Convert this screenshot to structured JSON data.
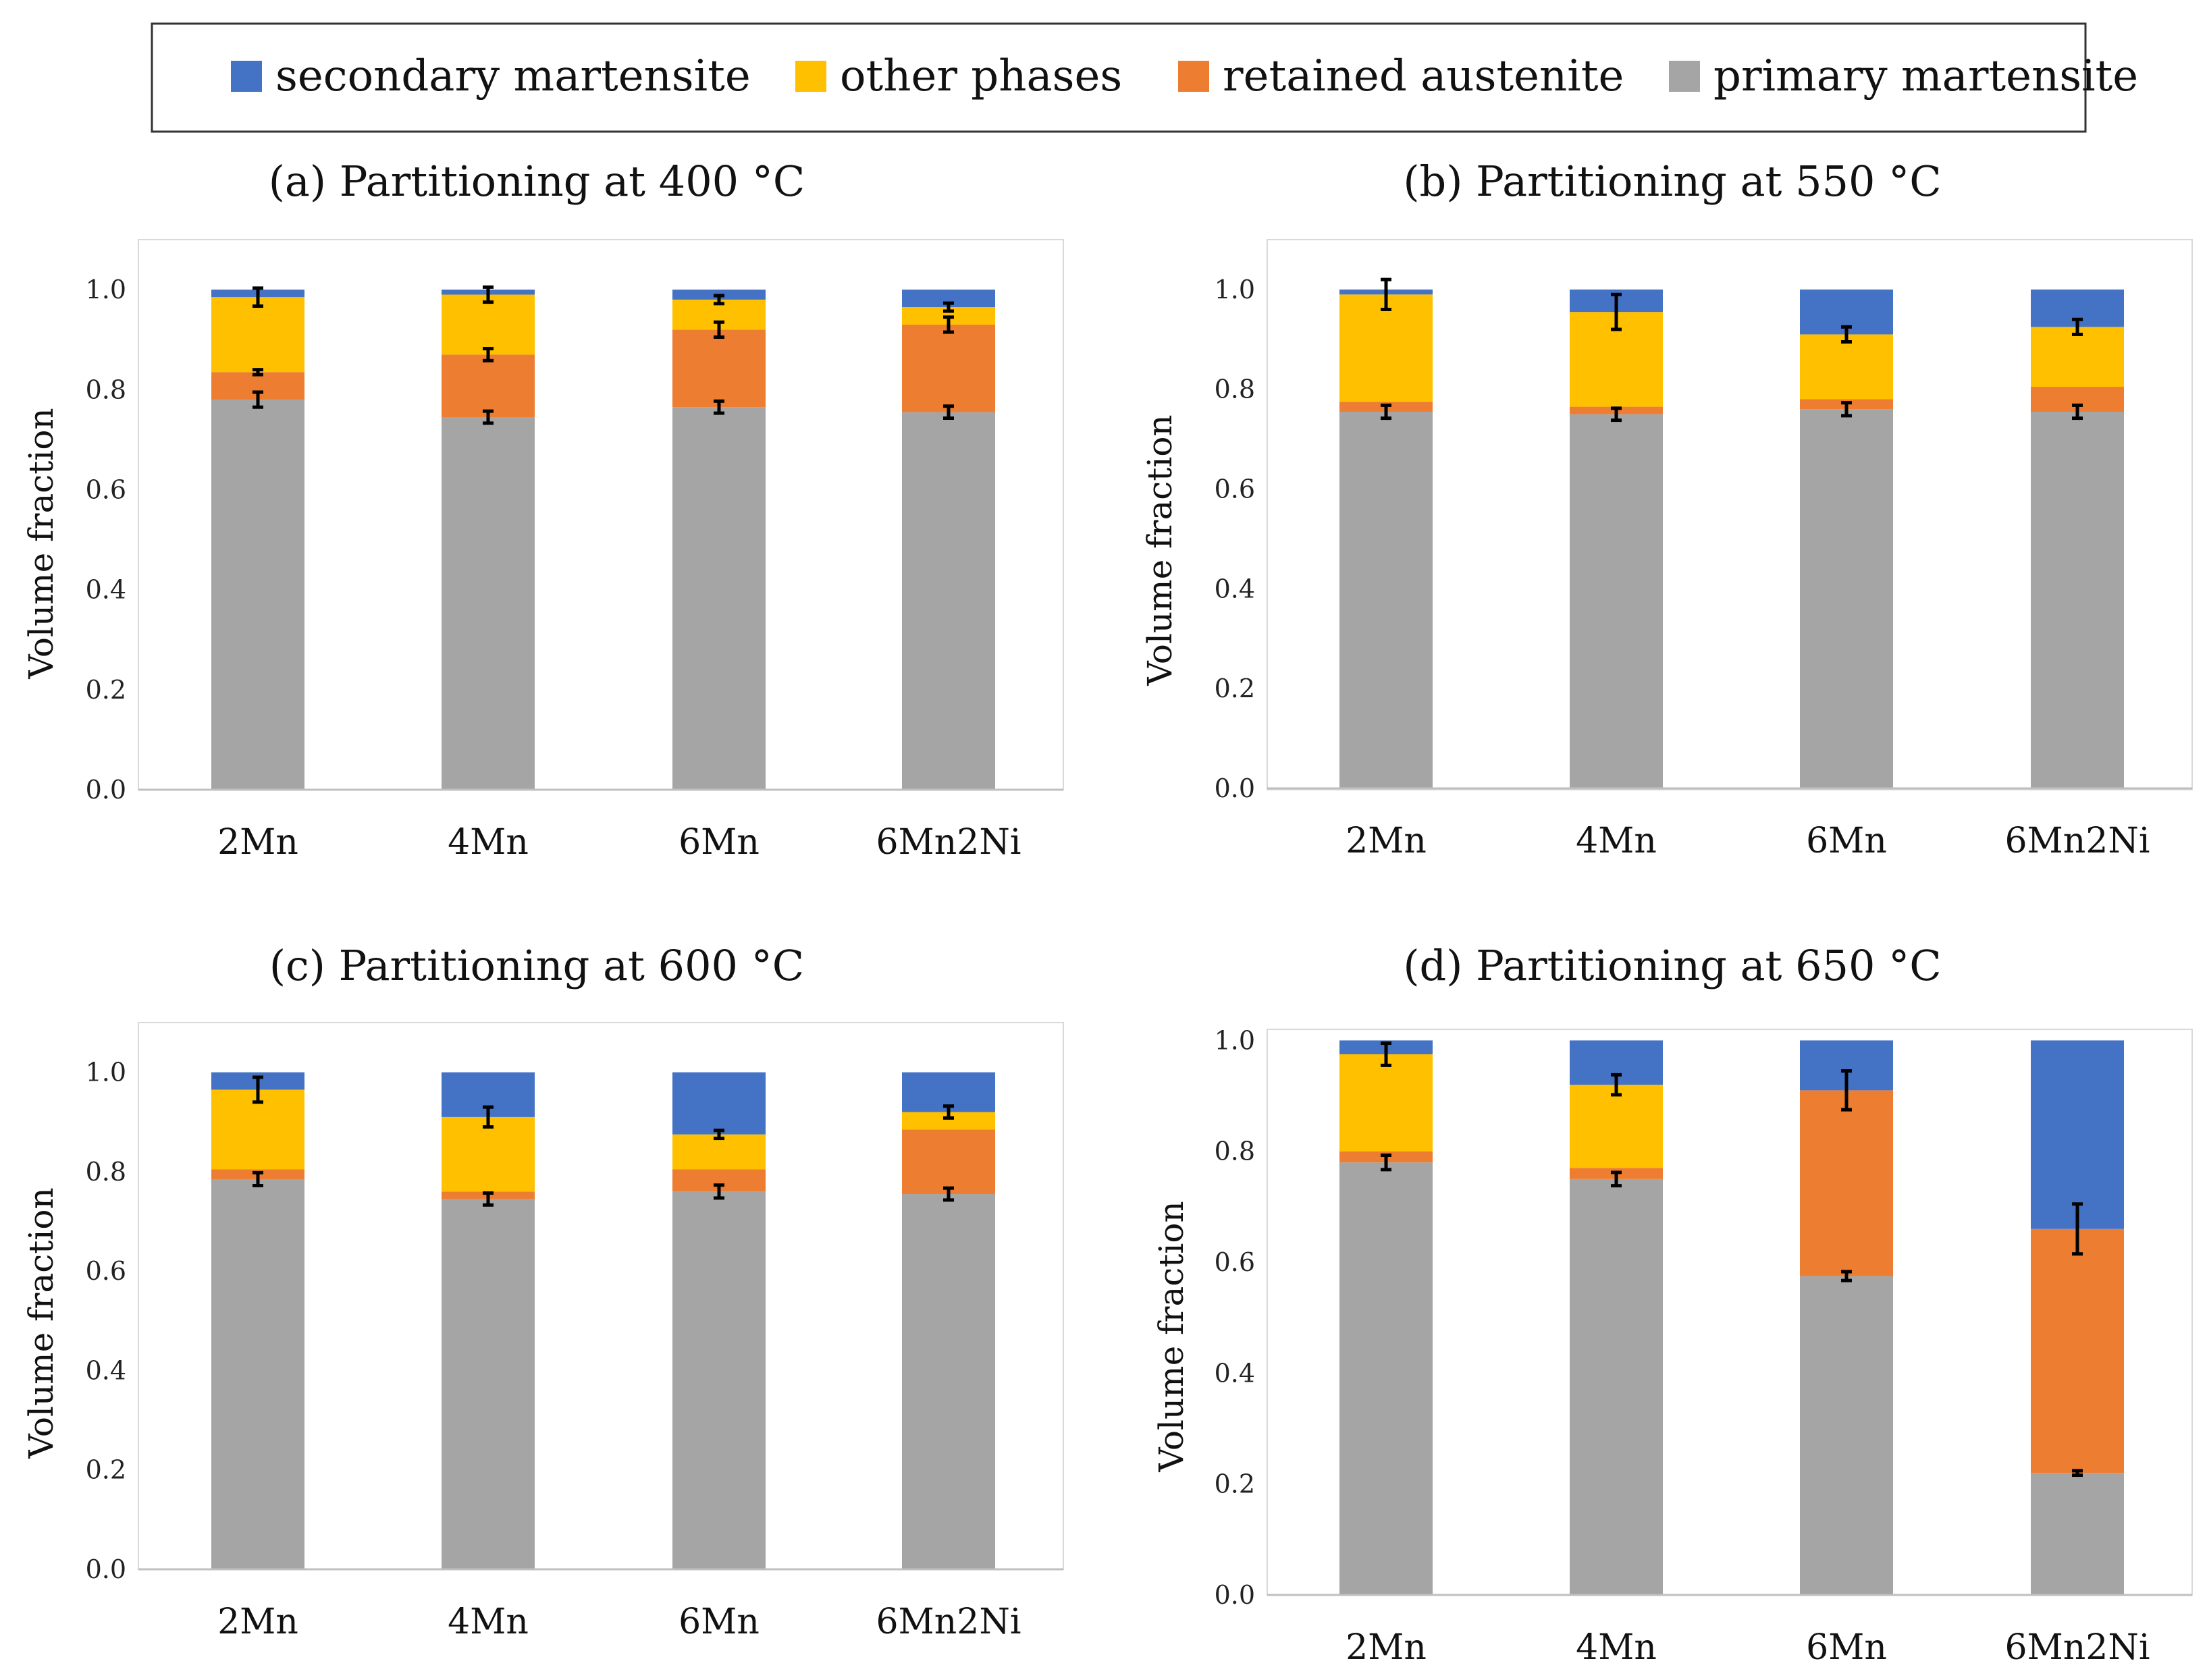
{
  "legend": {
    "items": [
      {
        "label": "secondary martensite",
        "color": "#4472C4"
      },
      {
        "label": "other phases",
        "color": "#FFC000"
      },
      {
        "label": "retained austenite",
        "color": "#ED7D31"
      },
      {
        "label": "primary martensite",
        "color": "#A5A5A5"
      }
    ]
  },
  "chart_data": [
    {
      "type": "bar",
      "stacked": true,
      "title": "(a) Partitioning at 400 °C",
      "xlabel": "",
      "ylabel": "Volume fraction",
      "ylim": [
        0,
        1.1
      ],
      "yticks": [
        "0.0",
        "0.2",
        "0.4",
        "0.6",
        "0.8",
        "1.0"
      ],
      "categories": [
        "2Mn",
        "4Mn",
        "6Mn",
        "6Mn2Ni"
      ],
      "series": [
        {
          "name": "primary martensite",
          "values": [
            0.78,
            0.745,
            0.765,
            0.755
          ],
          "errors": [
            0.015,
            0.012,
            0.012,
            0.012
          ]
        },
        {
          "name": "retained austenite",
          "values": [
            0.055,
            0.125,
            0.155,
            0.175
          ],
          "errors": [
            0.005,
            0.012,
            0.015,
            0.015
          ]
        },
        {
          "name": "other phases",
          "values": [
            0.15,
            0.12,
            0.06,
            0.035
          ],
          "errors": [
            0.018,
            0.015,
            0.008,
            0.008
          ]
        },
        {
          "name": "secondary martensite",
          "values": [
            0.015,
            0.01,
            0.02,
            0.035
          ],
          "errors": [
            0,
            0,
            0,
            0
          ]
        }
      ]
    },
    {
      "type": "bar",
      "stacked": true,
      "title": "(b) Partitioning at 550 °C",
      "xlabel": "",
      "ylabel": "Volume fraction",
      "ylim": [
        0,
        1.1
      ],
      "yticks": [
        "0.0",
        "0.2",
        "0.4",
        "0.6",
        "0.8",
        "1.0"
      ],
      "categories": [
        "2Mn",
        "4Mn",
        "6Mn",
        "6Mn2Ni"
      ],
      "series": [
        {
          "name": "primary martensite",
          "values": [
            0.755,
            0.75,
            0.76,
            0.755
          ],
          "errors": [
            0.013,
            0.012,
            0.013,
            0.013
          ]
        },
        {
          "name": "retained austenite",
          "values": [
            0.02,
            0.015,
            0.02,
            0.05
          ],
          "errors": [
            0,
            0,
            0,
            0
          ]
        },
        {
          "name": "other phases",
          "values": [
            0.215,
            0.19,
            0.13,
            0.12
          ],
          "errors": [
            0.03,
            0.035,
            0.015,
            0.015
          ]
        },
        {
          "name": "secondary martensite",
          "values": [
            0.01,
            0.045,
            0.09,
            0.075
          ],
          "errors": [
            0,
            0,
            0,
            0
          ]
        }
      ]
    },
    {
      "type": "bar",
      "stacked": true,
      "title": "(c) Partitioning at 600 °C",
      "xlabel": "",
      "ylabel": "Volume fraction",
      "ylim": [
        0,
        1.1
      ],
      "yticks": [
        "0.0",
        "0.2",
        "0.4",
        "0.6",
        "0.8",
        "1.0"
      ],
      "categories": [
        "2Mn",
        "4Mn",
        "6Mn",
        "6Mn2Ni"
      ],
      "series": [
        {
          "name": "primary martensite",
          "values": [
            0.785,
            0.745,
            0.76,
            0.755
          ],
          "errors": [
            0.013,
            0.012,
            0.013,
            0.012
          ]
        },
        {
          "name": "retained austenite",
          "values": [
            0.02,
            0.015,
            0.045,
            0.13
          ],
          "errors": [
            0,
            0,
            0,
            0
          ]
        },
        {
          "name": "other phases",
          "values": [
            0.16,
            0.15,
            0.07,
            0.035
          ],
          "errors": [
            0.025,
            0.02,
            0.008,
            0.012
          ]
        },
        {
          "name": "secondary martensite",
          "values": [
            0.035,
            0.09,
            0.125,
            0.08
          ],
          "errors": [
            0,
            0,
            0,
            0
          ]
        }
      ]
    },
    {
      "type": "bar",
      "stacked": true,
      "title": "(d) Partitioning at 650 °C",
      "xlabel": "",
      "ylabel": "Volume fraction",
      "ylim": [
        0,
        1.02
      ],
      "yticks": [
        "0.0",
        "0.2",
        "0.4",
        "0.6",
        "0.8",
        "1.0"
      ],
      "categories": [
        "2Mn",
        "4Mn",
        "6Mn",
        "6Mn2Ni"
      ],
      "series": [
        {
          "name": "primary martensite",
          "values": [
            0.78,
            0.75,
            0.575,
            0.22
          ],
          "errors": [
            0.013,
            0.012,
            0.008,
            0.004
          ]
        },
        {
          "name": "retained austenite",
          "values": [
            0.02,
            0.02,
            0.335,
            0.44
          ],
          "errors": [
            0,
            0,
            0.035,
            0.045
          ]
        },
        {
          "name": "other phases",
          "values": [
            0.175,
            0.15,
            0,
            0
          ],
          "errors": [
            0.02,
            0.018,
            0,
            0
          ]
        },
        {
          "name": "secondary martensite",
          "values": [
            0.025,
            0.08,
            0.09,
            0.34
          ],
          "errors": [
            0,
            0,
            0,
            0
          ]
        }
      ]
    }
  ]
}
